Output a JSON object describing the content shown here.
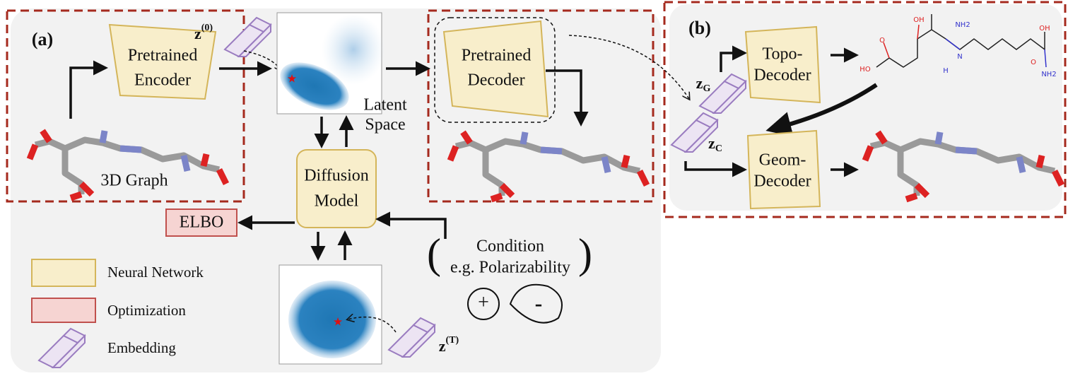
{
  "panel_a": {
    "label": "(a)",
    "encoder": [
      "Pretrained",
      "Encoder"
    ],
    "decoder": [
      "Pretrained",
      "Decoder"
    ],
    "latent_space": [
      "Latent",
      "Space"
    ],
    "graph_label": "3D Graph",
    "diffusion": [
      "Diffusion",
      "Model"
    ],
    "elbo": "ELBO",
    "condition": [
      "Condition",
      "e.g. Polarizability"
    ],
    "plus": "+",
    "minus": "-",
    "z0": {
      "base": "z",
      "sup": "(0)"
    },
    "zT": {
      "base": "z",
      "sup": "(T)"
    },
    "legend": [
      "Neural Network",
      "Optimization",
      "Embedding"
    ]
  },
  "panel_b": {
    "label": "(b)",
    "topo": [
      "Topo-",
      "Decoder"
    ],
    "geom": [
      "Geom-",
      "Decoder"
    ],
    "zG": {
      "base": "z",
      "sub": "G"
    },
    "zC": {
      "base": "z",
      "sub": "C"
    },
    "molecule_labels": [
      "HO",
      "O",
      "OH",
      "NH2",
      "N",
      "H",
      "O",
      "OH",
      "NH2"
    ]
  }
}
